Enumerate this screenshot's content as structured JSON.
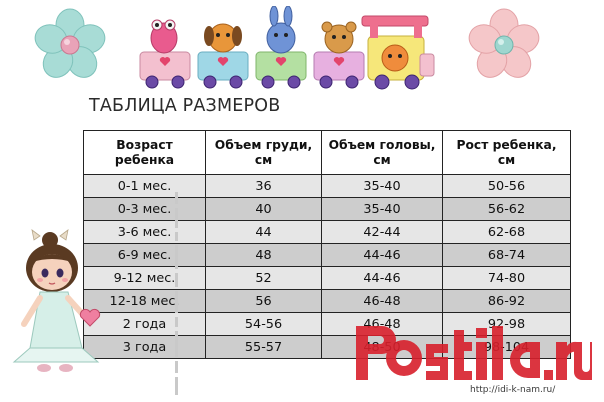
{
  "title": "ТАБЛИЦА РАЗМЕРОВ",
  "table": {
    "headers": [
      [
        "Возраст",
        "ребенка"
      ],
      [
        "Объем груди,",
        "см"
      ],
      [
        "Объем головы,",
        "см"
      ],
      [
        "Рост ребенка,",
        "см"
      ]
    ],
    "rows": [
      [
        "0-1 мес.",
        "36",
        "35-40",
        "50-56"
      ],
      [
        "0-3 мес.",
        "40",
        "35-40",
        "56-62"
      ],
      [
        "3-6 мес.",
        "44",
        "42-44",
        "62-68"
      ],
      [
        "6-9 мес.",
        "48",
        "44-46",
        "68-74"
      ],
      [
        "9-12 мес.",
        "52",
        "44-46",
        "74-80"
      ],
      [
        "12-18 мес.",
        "56",
        "46-48",
        "86-92"
      ],
      [
        "2 года",
        "54-56",
        "46-48",
        "92-98"
      ],
      [
        "3 года",
        "55-57",
        "48-50",
        "98-104"
      ]
    ]
  },
  "watermark": {
    "logo_text": "Postila.ru",
    "url": "http://idi-k-nam.ru/"
  },
  "colors": {
    "row_light": "#e6e6e6",
    "row_dark": "#cdcdcd",
    "watermark_red": "#d8202c"
  },
  "icons": [
    "flower-icon",
    "toy-train-icon",
    "doll-icon"
  ]
}
